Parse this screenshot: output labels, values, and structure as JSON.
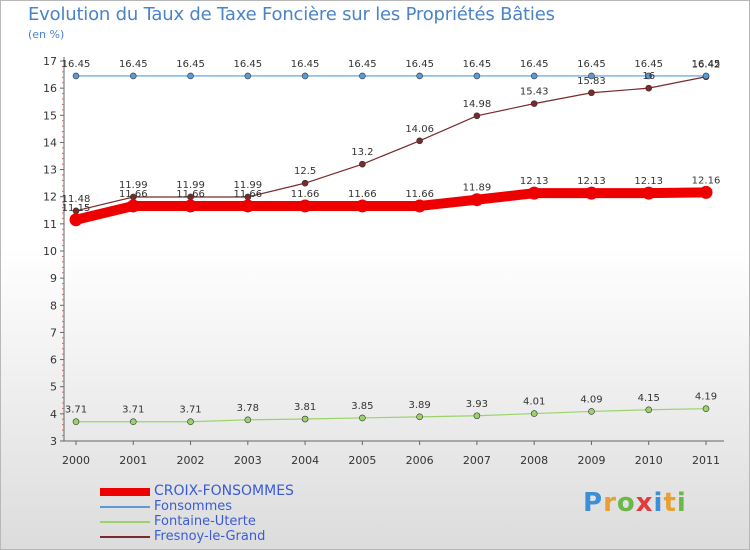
{
  "header": {
    "title": "Evolution du Taux de Taxe Foncière sur les Propriétés Bâties",
    "unit": "(en %)"
  },
  "logo": {
    "letters": [
      "P",
      "r",
      "o",
      "x",
      "i",
      "t",
      "i"
    ],
    "colors": [
      "#3c8fd6",
      "#e8a030",
      "#6bb84a",
      "#e23b3b",
      "#3c8fd6",
      "#e8a030",
      "#6bb84a"
    ]
  },
  "chart_data": {
    "type": "line",
    "title": "Evolution du Taux de Taxe Foncière sur les Propriétés Bâties",
    "ylabel": "(en %)",
    "xlabel": "",
    "categories": [
      "2000",
      "2001",
      "2002",
      "2003",
      "2004",
      "2005",
      "2006",
      "2007",
      "2008",
      "2009",
      "2010",
      "2011"
    ],
    "ylim": [
      3,
      17
    ],
    "yticks": [
      "3",
      "4",
      "5",
      "6",
      "7",
      "8",
      "9",
      "10",
      "11",
      "12",
      "13",
      "14",
      "15",
      "16",
      "17"
    ],
    "grid": false,
    "legend": "bottom-left",
    "series": [
      {
        "name": "CROIX-FONSOMMES",
        "color": "#ee0000",
        "emphasis": true,
        "values": [
          11.15,
          11.66,
          11.66,
          11.66,
          11.66,
          11.66,
          11.66,
          11.89,
          12.13,
          12.13,
          12.13,
          12.16
        ],
        "labels": [
          "11.15",
          "11.66",
          "11.66",
          "11.66",
          "11.66",
          "11.66",
          "11.66",
          "11.89",
          "12.13",
          "12.13",
          "12.13",
          "12.16"
        ]
      },
      {
        "name": "Fonsommes",
        "color": "#5b9bd5",
        "emphasis": false,
        "values": [
          16.45,
          16.45,
          16.45,
          16.45,
          16.45,
          16.45,
          16.45,
          16.45,
          16.45,
          16.45,
          16.45,
          16.45
        ],
        "labels": [
          "16.45",
          "16.45",
          "16.45",
          "16.45",
          "16.45",
          "16.45",
          "16.45",
          "16.45",
          "16.45",
          "16.45",
          "16.45",
          "16.45"
        ]
      },
      {
        "name": "Fontaine-Uterte",
        "color": "#9ad36a",
        "emphasis": false,
        "values": [
          3.71,
          3.71,
          3.71,
          3.78,
          3.81,
          3.85,
          3.89,
          3.93,
          4.01,
          4.09,
          4.15,
          4.19
        ],
        "labels": [
          "3.71",
          "3.71",
          "3.71",
          "3.78",
          "3.81",
          "3.85",
          "3.89",
          "3.93",
          "4.01",
          "4.09",
          "4.15",
          "4.19"
        ]
      },
      {
        "name": "Fresnoy-le-Grand",
        "color": "#7a2a2a",
        "emphasis": false,
        "values": [
          11.48,
          11.99,
          11.99,
          11.99,
          12.5,
          13.2,
          14.06,
          14.98,
          15.43,
          15.83,
          16,
          16.42
        ],
        "labels": [
          "11.48",
          "11.99",
          "11.99",
          "11.99",
          "12.5",
          "13.2",
          "14.06",
          "14.98",
          "15.43",
          "15.83",
          "16",
          "16.42"
        ]
      }
    ]
  }
}
